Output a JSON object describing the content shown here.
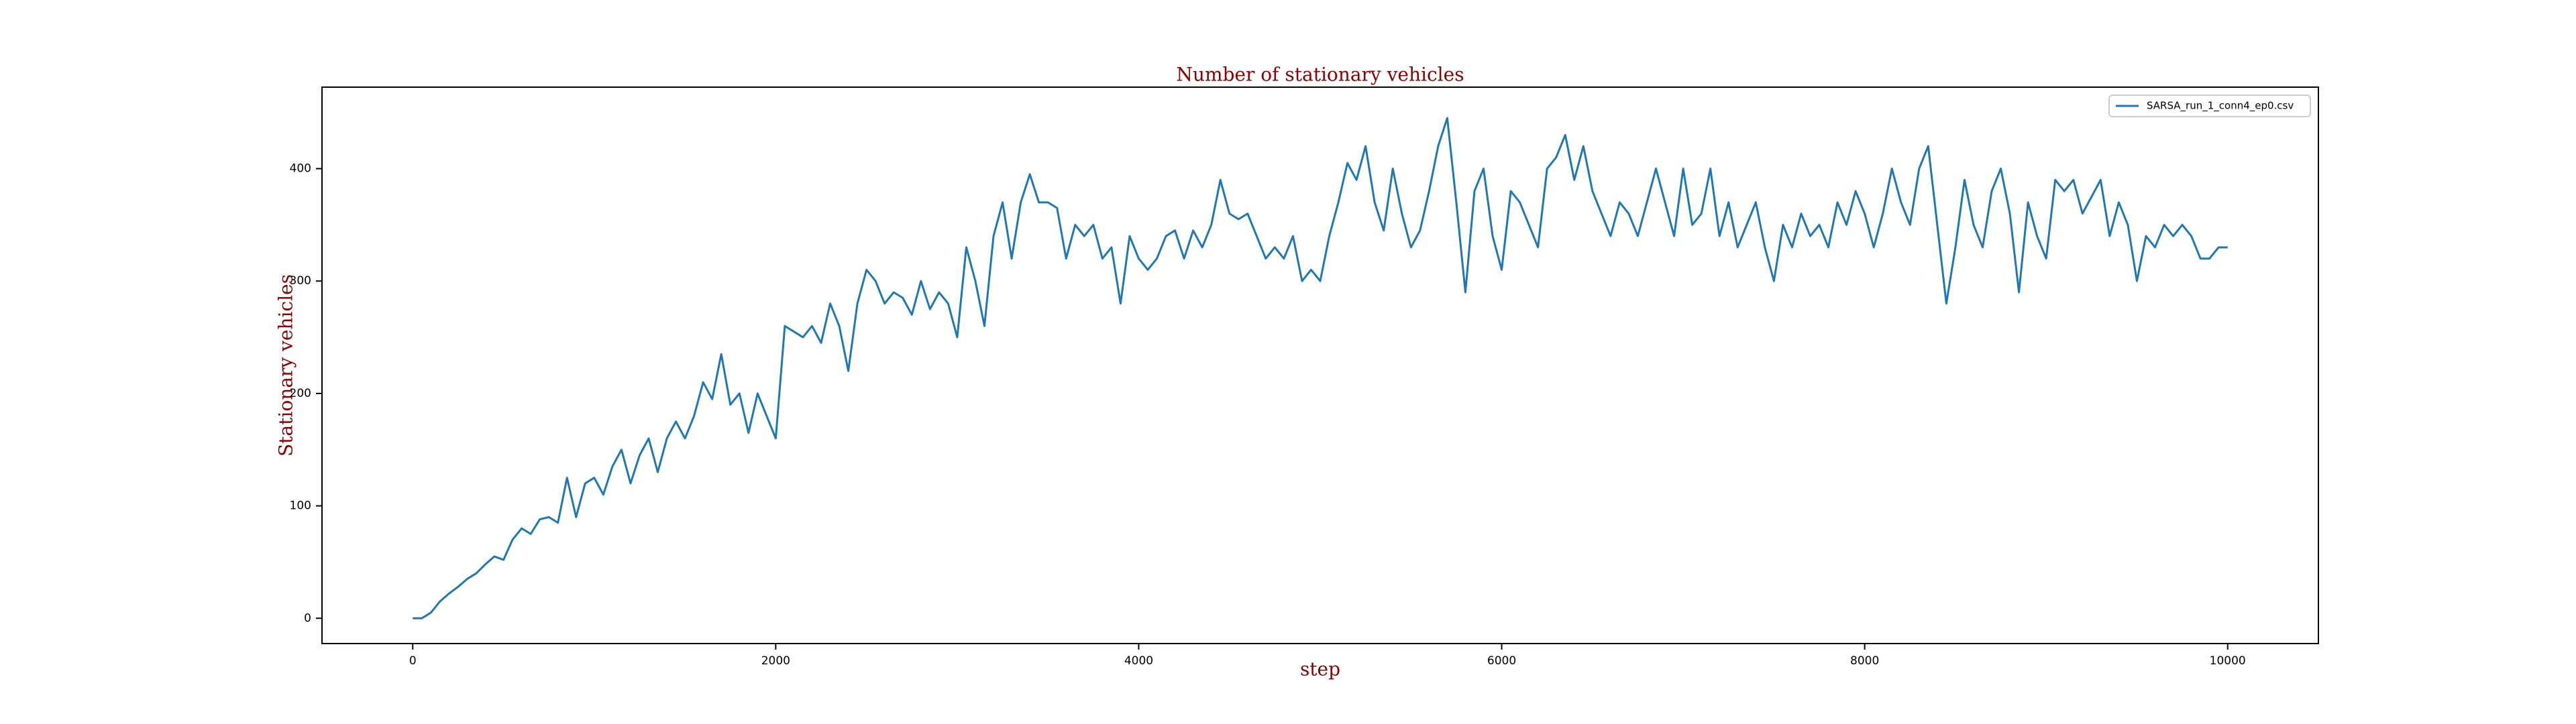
{
  "chart_data": {
    "type": "line",
    "title": "Number of stationary vehicles",
    "x_label": "step",
    "y_label": "Stationary vehicles",
    "xlim": [
      -500,
      10500
    ],
    "ylim": [
      -22.5,
      472.5
    ],
    "xticks": [
      0,
      2000,
      4000,
      6000,
      8000,
      10000
    ],
    "yticks": [
      0,
      100,
      200,
      300,
      400
    ],
    "grid": false,
    "legend": "upper right",
    "x": [
      0,
      50,
      100,
      150,
      200,
      250,
      300,
      350,
      400,
      450,
      500,
      550,
      600,
      650,
      700,
      750,
      800,
      850,
      900,
      950,
      1000,
      1050,
      1100,
      1150,
      1200,
      1250,
      1300,
      1350,
      1400,
      1450,
      1500,
      1550,
      1600,
      1650,
      1700,
      1750,
      1800,
      1850,
      1900,
      1950,
      2000,
      2050,
      2100,
      2150,
      2200,
      2250,
      2300,
      2350,
      2400,
      2450,
      2500,
      2550,
      2600,
      2650,
      2700,
      2750,
      2800,
      2850,
      2900,
      2950,
      3000,
      3050,
      3100,
      3150,
      3200,
      3250,
      3300,
      3350,
      3400,
      3450,
      3500,
      3550,
      3600,
      3650,
      3700,
      3750,
      3800,
      3850,
      3900,
      3950,
      4000,
      4050,
      4100,
      4150,
      4200,
      4250,
      4300,
      4350,
      4400,
      4450,
      4500,
      4550,
      4600,
      4650,
      4700,
      4750,
      4800,
      4850,
      4900,
      4950,
      5000,
      5050,
      5100,
      5150,
      5200,
      5250,
      5300,
      5350,
      5400,
      5450,
      5500,
      5550,
      5600,
      5650,
      5700,
      5750,
      5800,
      5850,
      5900,
      5950,
      6000,
      6050,
      6100,
      6150,
      6200,
      6250,
      6300,
      6350,
      6400,
      6450,
      6500,
      6550,
      6600,
      6650,
      6700,
      6750,
      6800,
      6850,
      6900,
      6950,
      7000,
      7050,
      7100,
      7150,
      7200,
      7250,
      7300,
      7350,
      7400,
      7450,
      7500,
      7550,
      7600,
      7650,
      7700,
      7750,
      7800,
      7850,
      7900,
      7950,
      8000,
      8050,
      8100,
      8150,
      8200,
      8250,
      8300,
      8350,
      8400,
      8450,
      8500,
      8550,
      8600,
      8650,
      8700,
      8750,
      8800,
      8850,
      8900,
      8950,
      9000,
      9050,
      9100,
      9150,
      9200,
      9250,
      9300,
      9350,
      9400,
      9450,
      9500,
      9550,
      9600,
      9650,
      9700,
      9750,
      9800,
      9850,
      9900,
      9950,
      10000
    ],
    "series": [
      {
        "name": "SARSA_run_1_conn4_ep0.csv",
        "color": "#1f77b4",
        "values": [
          0,
          0,
          5,
          15,
          22,
          28,
          35,
          40,
          48,
          55,
          52,
          70,
          80,
          75,
          88,
          90,
          85,
          125,
          90,
          120,
          125,
          110,
          135,
          150,
          120,
          145,
          160,
          130,
          160,
          175,
          160,
          180,
          210,
          195,
          235,
          190,
          200,
          165,
          200,
          180,
          160,
          260,
          255,
          250,
          260,
          245,
          280,
          260,
          220,
          280,
          310,
          300,
          280,
          290,
          285,
          270,
          300,
          275,
          290,
          280,
          250,
          330,
          300,
          260,
          340,
          370,
          320,
          370,
          395,
          370,
          370,
          365,
          320,
          350,
          340,
          350,
          320,
          330,
          280,
          340,
          320,
          310,
          320,
          340,
          345,
          320,
          345,
          330,
          350,
          390,
          360,
          355,
          360,
          340,
          320,
          330,
          320,
          340,
          300,
          310,
          300,
          340,
          370,
          405,
          390,
          420,
          370,
          345,
          400,
          360,
          330,
          345,
          380,
          420,
          445,
          370,
          290,
          380,
          400,
          340,
          310,
          380,
          370,
          350,
          330,
          400,
          410,
          430,
          390,
          420,
          380,
          360,
          340,
          370,
          360,
          340,
          370,
          400,
          370,
          340,
          400,
          350,
          360,
          400,
          340,
          370,
          330,
          350,
          370,
          330,
          300,
          350,
          330,
          360,
          340,
          350,
          330,
          370,
          350,
          380,
          360,
          330,
          360,
          400,
          370,
          350,
          400,
          420,
          350,
          280,
          330,
          390,
          350,
          330,
          380,
          400,
          360,
          290,
          370,
          340,
          320,
          390,
          380,
          390,
          360,
          375,
          390,
          340,
          370,
          350,
          300,
          340,
          330,
          350,
          340,
          350,
          340,
          320,
          320,
          330,
          330
        ]
      }
    ]
  }
}
